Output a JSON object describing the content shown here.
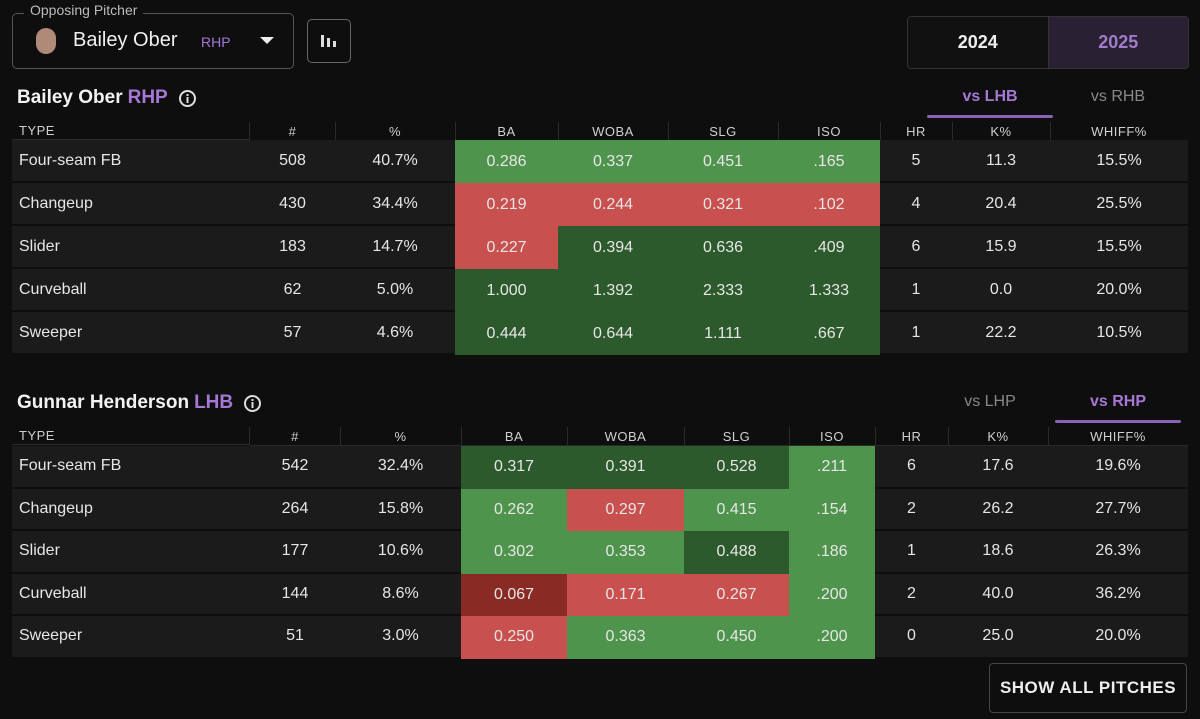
{
  "header": {
    "label": "Opposing Pitcher",
    "pitcher": "Bailey Ober",
    "hand": "RHP"
  },
  "years": {
    "options": [
      "2024",
      "2025"
    ],
    "selected": 1
  },
  "tables": [
    {
      "player": "Bailey Ober",
      "hand": "RHP",
      "tabs": [
        "vs LHB",
        "vs RHB"
      ],
      "selected_tab": 0,
      "columns": [
        "TYPE",
        "#",
        "%",
        "BA",
        "WOBA",
        "SLG",
        "ISO",
        "HR",
        "K%",
        "WHIFF%"
      ],
      "rows": [
        [
          "Four-seam FB",
          "508",
          "40.7%",
          "0.286",
          "0.337",
          "0.451",
          ".165",
          "5",
          "11.3",
          "15.5%"
        ],
        [
          "Changeup",
          "430",
          "34.4%",
          "0.219",
          "0.244",
          "0.321",
          ".102",
          "4",
          "20.4",
          "25.5%"
        ],
        [
          "Slider",
          "183",
          "14.7%",
          "0.227",
          "0.394",
          "0.636",
          ".409",
          "6",
          "15.9",
          "15.5%"
        ],
        [
          "Curveball",
          "62",
          "5.0%",
          "1.000",
          "1.392",
          "2.333",
          "1.333",
          "1",
          "0.0",
          "20.0%"
        ],
        [
          "Sweeper",
          "57",
          "4.6%",
          "0.444",
          "0.644",
          "1.111",
          ".667",
          "1",
          "22.2",
          "10.5%"
        ]
      ],
      "heat": [
        [
          "#4f944c",
          "#4f944c",
          "#4f944c",
          "#4f944c"
        ],
        [
          "#c8504e",
          "#c8504e",
          "#c8504e",
          "#c8504e"
        ],
        [
          "#c8504e",
          "#2d5a2c",
          "#2d5a2c",
          "#2d5a2c"
        ],
        [
          "#2d5a2c",
          "#2d5a2c",
          "#2d5a2c",
          "#2d5a2c"
        ],
        [
          "#2d5a2c",
          "#2d5a2c",
          "#2d5a2c",
          "#2d5a2c"
        ]
      ]
    },
    {
      "player": "Gunnar Henderson",
      "hand": "LHB",
      "tabs": [
        "vs LHP",
        "vs RHP"
      ],
      "selected_tab": 1,
      "columns": [
        "TYPE",
        "#",
        "%",
        "BA",
        "WOBA",
        "SLG",
        "ISO",
        "HR",
        "K%",
        "WHIFF%"
      ],
      "rows": [
        [
          "Four-seam FB",
          "542",
          "32.4%",
          "0.317",
          "0.391",
          "0.528",
          ".211",
          "6",
          "17.6",
          "19.6%"
        ],
        [
          "Changeup",
          "264",
          "15.8%",
          "0.262",
          "0.297",
          "0.415",
          ".154",
          "2",
          "26.2",
          "27.7%"
        ],
        [
          "Slider",
          "177",
          "10.6%",
          "0.302",
          "0.353",
          "0.488",
          ".186",
          "1",
          "18.6",
          "26.3%"
        ],
        [
          "Curveball",
          "144",
          "8.6%",
          "0.067",
          "0.171",
          "0.267",
          ".200",
          "2",
          "40.0",
          "36.2%"
        ],
        [
          "Sweeper",
          "51",
          "3.0%",
          "0.250",
          "0.363",
          "0.450",
          ".200",
          "0",
          "25.0",
          "20.0%"
        ]
      ],
      "heat": [
        [
          "#2d5a2c",
          "#2d5a2c",
          "#2d5a2c",
          "#4f944c"
        ],
        [
          "#4f944c",
          "#c8504e",
          "#4f944c",
          "#4f944c"
        ],
        [
          "#4f944c",
          "#4f944c",
          "#2d5a2c",
          "#4f944c"
        ],
        [
          "#8a2a24",
          "#c8504e",
          "#c8504e",
          "#4f944c"
        ],
        [
          "#c8504e",
          "#4f944c",
          "#4f944c",
          "#4f944c"
        ]
      ]
    }
  ],
  "button": "SHOW ALL PITCHES"
}
